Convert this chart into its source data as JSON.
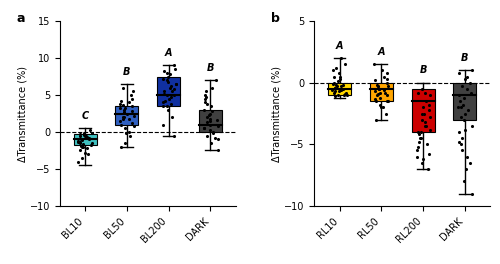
{
  "panel_a": {
    "labels": [
      "BL10",
      "BL50",
      "BL200",
      "DARK"
    ],
    "colors": [
      "#40C0C0",
      "#3060C0",
      "#1030A0",
      "#404040"
    ],
    "medians": [
      -1.0,
      2.5,
      5.0,
      1.0
    ],
    "q1": [
      -1.8,
      1.0,
      3.5,
      0.0
    ],
    "q3": [
      -0.3,
      3.5,
      7.5,
      3.0
    ],
    "whisker_low": [
      -4.5,
      -2.0,
      -0.5,
      -2.5
    ],
    "whisker_high": [
      0.5,
      6.5,
      9.0,
      7.0
    ],
    "sig_labels": [
      "C",
      "B",
      "A",
      "B"
    ],
    "ylabel": "ΔTransmittance (%)",
    "ylim": [
      -10,
      15
    ],
    "yticks": [
      -10,
      -5,
      0,
      5,
      10,
      15
    ],
    "dots": [
      [
        -2.0,
        -1.5,
        -1.0,
        -0.8,
        -0.5,
        -0.3,
        -1.2,
        -1.8,
        -2.2,
        -3.0,
        -4.0,
        -0.2,
        0.3,
        -0.9,
        -1.5,
        -2.5,
        -3.5,
        -0.5,
        -0.1,
        -1.1,
        -0.7,
        -1.3,
        -2.0,
        -1.6,
        -0.4,
        -0.8,
        -1.9,
        -2.8,
        -0.6,
        -1.4
      ],
      [
        -2.0,
        0.0,
        1.0,
        2.0,
        3.0,
        3.5,
        4.0,
        2.5,
        1.5,
        -0.5,
        -1.5,
        5.0,
        6.0,
        3.8,
        2.8,
        1.8,
        0.5,
        2.0,
        3.2,
        4.5,
        1.2,
        2.2,
        3.3,
        0.8,
        -0.2,
        1.7,
        4.2,
        5.5,
        2.7,
        3.7
      ],
      [
        -0.5,
        1.0,
        2.0,
        3.5,
        5.0,
        6.0,
        7.0,
        8.0,
        4.5,
        5.5,
        6.5,
        7.5,
        3.0,
        4.0,
        5.5,
        6.5,
        8.5,
        9.0,
        4.8,
        5.2,
        3.8,
        7.2,
        6.8,
        5.8,
        4.2,
        6.2,
        5.0,
        3.5,
        7.8,
        8.2
      ],
      [
        -2.5,
        -1.5,
        -0.5,
        0.5,
        1.5,
        2.5,
        3.0,
        4.0,
        5.0,
        6.0,
        7.0,
        -0.2,
        0.8,
        1.8,
        2.8,
        3.8,
        -1.0,
        0.0,
        1.0,
        2.0,
        3.5,
        4.5,
        5.5,
        0.3,
        1.3,
        2.3,
        -0.8,
        0.6,
        1.6,
        4.8
      ]
    ]
  },
  "panel_b": {
    "labels": [
      "RL10",
      "RL50",
      "RL200",
      "DARK"
    ],
    "colors": [
      "#FFD700",
      "#FFA500",
      "#CC0000",
      "#404040"
    ],
    "medians": [
      -0.5,
      -0.5,
      -1.5,
      -1.0
    ],
    "q1": [
      -1.0,
      -1.5,
      -4.0,
      -3.0
    ],
    "q3": [
      0.0,
      0.0,
      -0.5,
      0.0
    ],
    "whisker_low": [
      -1.2,
      -3.0,
      -7.0,
      -9.0
    ],
    "whisker_high": [
      2.0,
      1.5,
      0.0,
      1.0
    ],
    "sig_labels": [
      "A",
      "A",
      "B",
      "B"
    ],
    "ylabel": "ΔTransmittance (%)",
    "ylim": [
      -10,
      5
    ],
    "yticks": [
      -10,
      -5,
      0,
      5
    ],
    "dots": [
      [
        -1.0,
        -0.8,
        -0.5,
        -0.3,
        0.0,
        0.5,
        1.0,
        1.5,
        2.0,
        -0.2,
        -0.6,
        -1.0,
        -0.9,
        -0.4,
        -0.7,
        -1.1,
        -0.3,
        0.3,
        0.8,
        1.2,
        -0.5,
        -0.8,
        -0.2,
        0.1,
        -0.7,
        -1.0,
        -0.4,
        0.5,
        -0.6,
        -0.1
      ],
      [
        -3.0,
        -2.0,
        -1.5,
        -1.0,
        -0.5,
        0.0,
        0.5,
        1.0,
        1.5,
        -0.8,
        -1.2,
        -2.5,
        -0.3,
        -0.7,
        -1.5,
        -0.2,
        -1.8,
        -0.5,
        0.2,
        0.8,
        -1.0,
        -1.5,
        -0.8,
        -0.3,
        -2.0,
        -0.6,
        -1.3,
        0.3,
        -0.9,
        -0.4
      ],
      [
        -7.0,
        -6.0,
        -5.0,
        -4.5,
        -4.0,
        -3.5,
        -3.0,
        -2.5,
        -2.0,
        -1.5,
        -1.0,
        -0.5,
        -6.5,
        -5.5,
        -4.8,
        -3.8,
        -2.8,
        -1.8,
        -0.8,
        -4.2,
        -3.2,
        -5.2,
        -6.2,
        -2.2,
        -4.5,
        -3.5,
        -5.8,
        -4.0,
        -2.5,
        -0.8
      ],
      [
        -9.0,
        -7.0,
        -5.5,
        -4.0,
        -3.0,
        -2.5,
        -2.0,
        -1.5,
        -1.0,
        -0.5,
        0.0,
        0.5,
        1.0,
        -8.0,
        -6.0,
        -4.5,
        -3.5,
        -2.2,
        -1.2,
        -0.3,
        0.3,
        0.8,
        -5.0,
        -3.8,
        -2.8,
        -1.8,
        -6.5,
        -4.8,
        -0.8,
        -2.0
      ]
    ]
  },
  "panel_a_label": "a",
  "panel_b_label": "b"
}
